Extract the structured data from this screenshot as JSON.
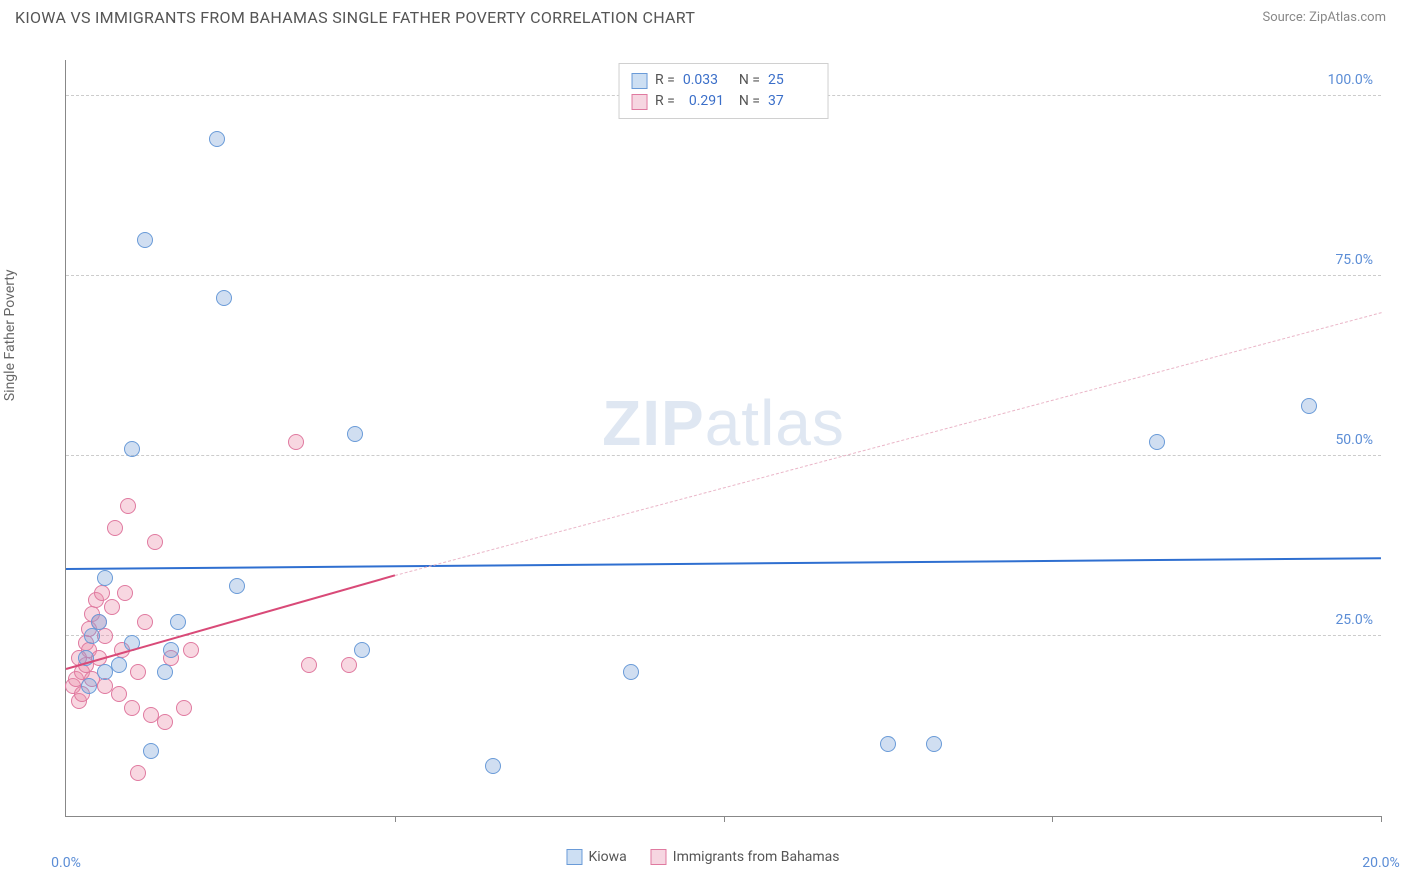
{
  "header": {
    "title": "KIOWA VS IMMIGRANTS FROM BAHAMAS SINGLE FATHER POVERTY CORRELATION CHART",
    "source": "Source: ZipAtlas.com"
  },
  "ylabel": "Single Father Poverty",
  "watermark_a": "ZIP",
  "watermark_b": "atlas",
  "axes": {
    "xmin": 0,
    "xmax": 20,
    "ymin": 0,
    "ymax": 105,
    "xticks": [
      0,
      5,
      10,
      15,
      20
    ],
    "xticklabels": [
      "0.0%",
      "",
      "",
      "",
      "20.0%"
    ],
    "ygrids": [
      25,
      50,
      75,
      100
    ],
    "yticklabels": [
      "25.0%",
      "50.0%",
      "75.0%",
      "100.0%"
    ]
  },
  "series": {
    "kiowa": {
      "label": "Kiowa",
      "fill": "rgba(120,160,215,0.35)",
      "stroke": "#6a9bd8",
      "r": 8,
      "R_label": "R =",
      "R": "0.033",
      "N_label": "N =",
      "N": "25",
      "trend": {
        "x1": 0,
        "y1": 34.5,
        "x2": 20,
        "y2": 36.0,
        "color": "#2f6fd0",
        "width": 2.5,
        "dash": "none"
      },
      "points": [
        {
          "x": 0.3,
          "y": 22
        },
        {
          "x": 0.4,
          "y": 25
        },
        {
          "x": 0.5,
          "y": 27
        },
        {
          "x": 0.6,
          "y": 33
        },
        {
          "x": 1.0,
          "y": 51
        },
        {
          "x": 1.2,
          "y": 80
        },
        {
          "x": 1.3,
          "y": 9
        },
        {
          "x": 1.5,
          "y": 20
        },
        {
          "x": 1.6,
          "y": 23
        },
        {
          "x": 1.7,
          "y": 27
        },
        {
          "x": 2.3,
          "y": 94
        },
        {
          "x": 2.4,
          "y": 72
        },
        {
          "x": 2.6,
          "y": 32
        },
        {
          "x": 4.4,
          "y": 53
        },
        {
          "x": 4.5,
          "y": 23
        },
        {
          "x": 6.5,
          "y": 7
        },
        {
          "x": 8.6,
          "y": 20
        },
        {
          "x": 12.5,
          "y": 10
        },
        {
          "x": 13.2,
          "y": 10
        },
        {
          "x": 16.6,
          "y": 52
        },
        {
          "x": 18.9,
          "y": 57
        },
        {
          "x": 0.35,
          "y": 18
        },
        {
          "x": 0.6,
          "y": 20
        },
        {
          "x": 1.0,
          "y": 24
        },
        {
          "x": 0.8,
          "y": 21
        }
      ]
    },
    "bahamas": {
      "label": "Immigrants from Bahamas",
      "fill": "rgba(235,140,170,0.35)",
      "stroke": "#e07aa0",
      "r": 8,
      "R_label": "R =",
      "R": "0.291",
      "N_label": "N =",
      "N": "37",
      "trend_solid": {
        "x1": 0,
        "y1": 20.5,
        "x2": 5,
        "y2": 33.5,
        "color": "#d94a78",
        "width": 2.5
      },
      "trend_dashed": {
        "x1": 5,
        "y1": 33.5,
        "x2": 20,
        "y2": 70.0,
        "color": "#eab6c8",
        "width": 1.2
      },
      "points": [
        {
          "x": 0.1,
          "y": 18
        },
        {
          "x": 0.15,
          "y": 19
        },
        {
          "x": 0.2,
          "y": 16
        },
        {
          "x": 0.25,
          "y": 17
        },
        {
          "x": 0.25,
          "y": 20
        },
        {
          "x": 0.3,
          "y": 21
        },
        {
          "x": 0.3,
          "y": 24
        },
        {
          "x": 0.35,
          "y": 23
        },
        {
          "x": 0.35,
          "y": 26
        },
        {
          "x": 0.4,
          "y": 28
        },
        {
          "x": 0.4,
          "y": 19
        },
        {
          "x": 0.45,
          "y": 30
        },
        {
          "x": 0.5,
          "y": 22
        },
        {
          "x": 0.5,
          "y": 27
        },
        {
          "x": 0.55,
          "y": 31
        },
        {
          "x": 0.6,
          "y": 18
        },
        {
          "x": 0.6,
          "y": 25
        },
        {
          "x": 0.7,
          "y": 29
        },
        {
          "x": 0.75,
          "y": 40
        },
        {
          "x": 0.8,
          "y": 17
        },
        {
          "x": 0.85,
          "y": 23
        },
        {
          "x": 0.9,
          "y": 31
        },
        {
          "x": 0.95,
          "y": 43
        },
        {
          "x": 1.0,
          "y": 15
        },
        {
          "x": 1.1,
          "y": 6
        },
        {
          "x": 1.1,
          "y": 20
        },
        {
          "x": 1.2,
          "y": 27
        },
        {
          "x": 1.3,
          "y": 14
        },
        {
          "x": 1.35,
          "y": 38
        },
        {
          "x": 1.5,
          "y": 13
        },
        {
          "x": 1.6,
          "y": 22
        },
        {
          "x": 1.8,
          "y": 15
        },
        {
          "x": 1.9,
          "y": 23
        },
        {
          "x": 3.7,
          "y": 21
        },
        {
          "x": 3.5,
          "y": 52
        },
        {
          "x": 4.3,
          "y": 21
        },
        {
          "x": 0.2,
          "y": 22
        }
      ]
    }
  },
  "legend_swatch": {
    "kiowa_fill": "#cddff3",
    "kiowa_stroke": "#6a9bd8",
    "bahamas_fill": "#f6d6e1",
    "bahamas_stroke": "#e07aa0"
  }
}
